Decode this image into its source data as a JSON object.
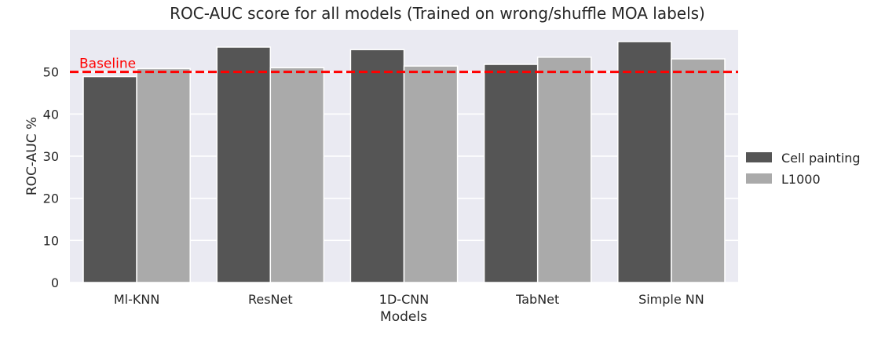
{
  "chart_data": {
    "type": "bar",
    "title": "ROC-AUC score for all models (Trained on wrong/shuffle MOA labels)",
    "xlabel": "Models",
    "ylabel": "ROC-AUC %",
    "categories": [
      "Ml-KNN",
      "ResNet",
      "1D-CNN",
      "TabNet",
      "Simple NN"
    ],
    "series": [
      {
        "name": "Cell painting",
        "color": "#555555",
        "values": [
          48.9,
          55.9,
          55.3,
          51.8,
          57.2
        ]
      },
      {
        "name": "L1000",
        "color": "#aaaaaa",
        "values": [
          50.8,
          51.0,
          51.4,
          53.5,
          53.1
        ]
      }
    ],
    "ylim": [
      0,
      60
    ],
    "yticks": [
      0,
      10,
      20,
      30,
      40,
      50
    ],
    "grid": true,
    "legend_position": "right",
    "baseline": {
      "value": 50,
      "label": "Baseline",
      "color": "#ff0000"
    },
    "background": "#eaeaf2"
  }
}
